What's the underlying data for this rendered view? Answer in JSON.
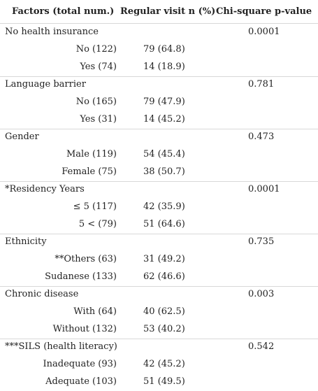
{
  "headers": {
    "factors": "Factors (total num.)",
    "visit": "Regular visit n (%)",
    "chi": "Chi-square p-value"
  },
  "groups": [
    {
      "label": "No health insurance",
      "pvalue": "0.0001",
      "rows": [
        {
          "label": "No (122)",
          "visit": "79 (64.8)"
        },
        {
          "label": "Yes (74)",
          "visit": "14 (18.9)"
        }
      ]
    },
    {
      "label": "Language barrier",
      "pvalue": "0.781",
      "rows": [
        {
          "label": "No (165)",
          "visit": "79 (47.9)"
        },
        {
          "label": "Yes (31)",
          "visit": "14 (45.2)"
        }
      ]
    },
    {
      "label": "Gender",
      "pvalue": "0.473",
      "rows": [
        {
          "label": "Male (119)",
          "visit": "54 (45.4)"
        },
        {
          "label": "Female (75)",
          "visit": "38 (50.7)"
        }
      ]
    },
    {
      "label": "*Residency Years",
      "pvalue": "0.0001",
      "rows": [
        {
          "label": "≤ 5 (117)",
          "visit": "42 (35.9)"
        },
        {
          "label": "5 < (79)",
          "visit": "51 (64.6)"
        }
      ]
    },
    {
      "label": "Ethnicity",
      "pvalue": "0.735",
      "rows": [
        {
          "label": "**Others (63)",
          "visit": "31 (49.2)"
        },
        {
          "label": "Sudanese (133)",
          "visit": "62 (46.6)"
        }
      ]
    },
    {
      "label": "Chronic disease",
      "pvalue": "0.003",
      "rows": [
        {
          "label": "With (64)",
          "visit": "40 (62.5)"
        },
        {
          "label": "Without (132)",
          "visit": "53 (40.2)"
        }
      ]
    },
    {
      "label": "***SILS (health literacy)",
      "pvalue": "0.542",
      "rows": [
        {
          "label": "Inadequate (93)",
          "visit": "42 (45.2)"
        },
        {
          "label": "Adequate (103)",
          "visit": "51 (49.5)"
        }
      ]
    }
  ]
}
